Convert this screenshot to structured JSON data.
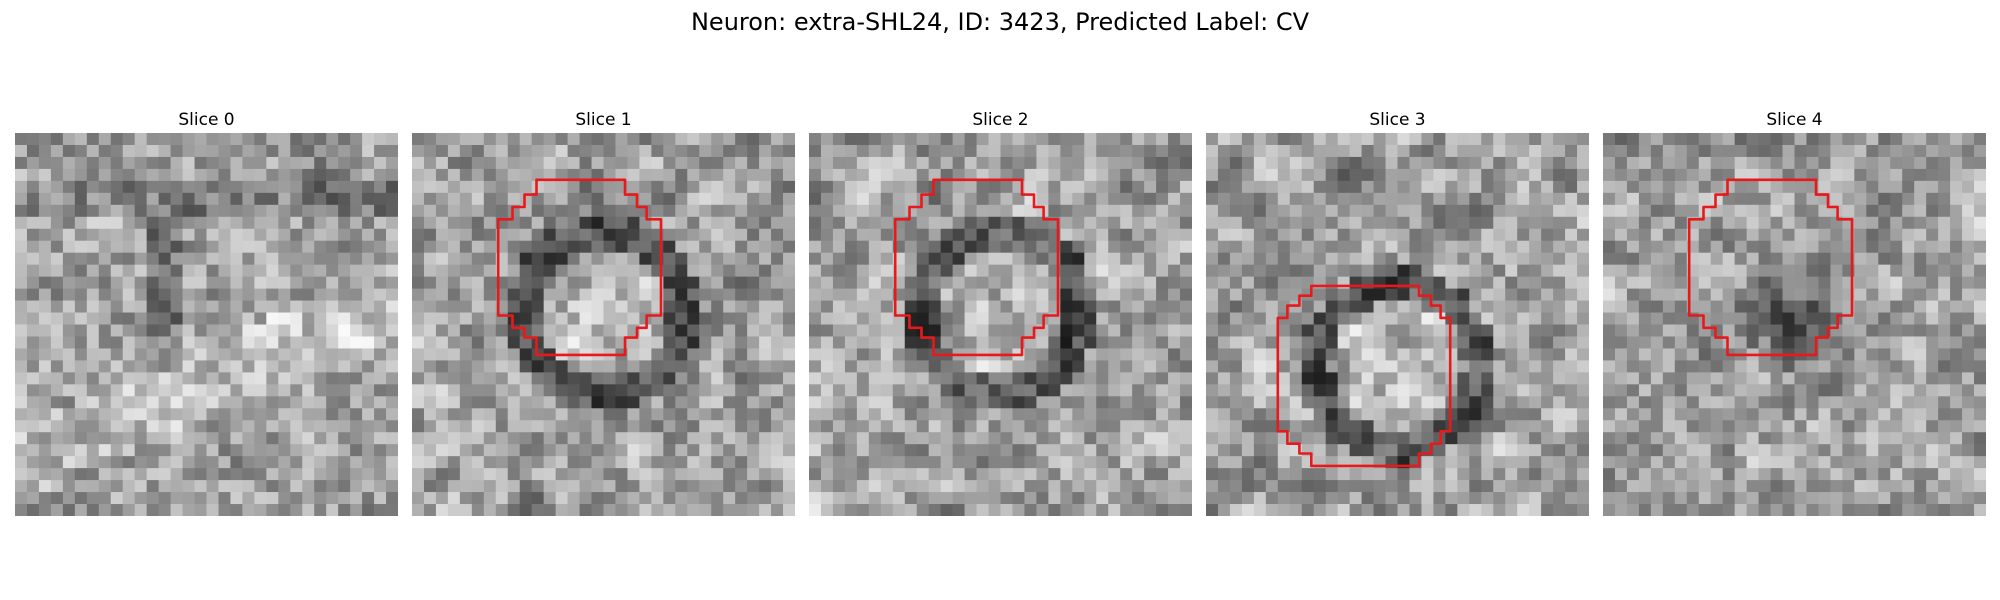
{
  "figure": {
    "title": "Neuron: extra-SHL24, ID: 3423, Predicted Label: CV"
  },
  "panels": [
    {
      "label": "Slice 0",
      "seed": 11,
      "structure": "none",
      "contour": false
    },
    {
      "label": "Slice 1",
      "seed": 23,
      "structure": "dark-ring",
      "contour": "upper"
    },
    {
      "label": "Slice 2",
      "seed": 37,
      "structure": "dark-ring",
      "contour": "upper"
    },
    {
      "label": "Slice 3",
      "seed": 41,
      "structure": "dark-ring-lower",
      "contour": "lower"
    },
    {
      "label": "Slice 4",
      "seed": 53,
      "structure": "dark-blob",
      "contour": "upper"
    }
  ],
  "colors": {
    "contour": "#e8191c",
    "background": "#ffffff"
  }
}
